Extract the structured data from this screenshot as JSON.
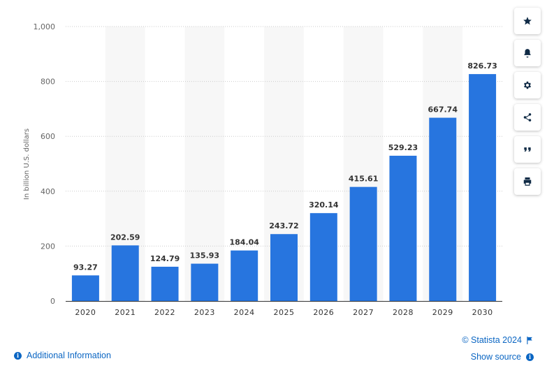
{
  "chart_data": {
    "type": "bar",
    "categories": [
      "2020",
      "2021",
      "2022",
      "2023",
      "2024",
      "2025",
      "2026",
      "2027",
      "2028",
      "2029",
      "2030"
    ],
    "values": [
      93.27,
      202.59,
      124.79,
      135.93,
      184.04,
      243.72,
      320.14,
      415.61,
      529.23,
      667.74,
      826.73
    ],
    "value_labels": [
      "93.27",
      "202.59",
      "124.79",
      "135.93",
      "184.04",
      "243.72",
      "320.14",
      "415.61",
      "529.23",
      "667.74",
      "826.73"
    ],
    "ylabel": "In billion U.S. dollars",
    "ylim": [
      0,
      1000
    ],
    "yticks": [
      0,
      200,
      400,
      600,
      800,
      1000
    ],
    "ytick_labels": [
      "0",
      "200",
      "400",
      "600",
      "800",
      "1,000"
    ],
    "grid": true,
    "bar_color": "#2775df",
    "band_color": "#f7f7f7"
  },
  "toolbar": {
    "items": [
      {
        "name": "favorite-star-icon"
      },
      {
        "name": "notification-bell-icon"
      },
      {
        "name": "settings-gear-icon"
      },
      {
        "name": "share-icon"
      },
      {
        "name": "cite-quote-icon"
      },
      {
        "name": "print-icon"
      }
    ]
  },
  "footer": {
    "additional_info": "Additional Information",
    "copyright": "© Statista 2024",
    "show_source": "Show source",
    "link_color": "#0b66c3"
  }
}
